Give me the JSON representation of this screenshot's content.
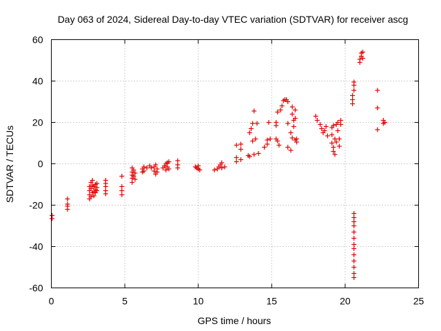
{
  "chart_data": {
    "type": "scatter",
    "title": "Day 063 of 2024, Sidereal Day-to-day VTEC variation (SDTVAR) for receiver ascg",
    "xlabel": "GPS time / hours",
    "ylabel": "SDTVAR / TECUs",
    "xlim": [
      0,
      25
    ],
    "ylim": [
      -60,
      60
    ],
    "xticks": [
      0,
      5,
      10,
      15,
      20,
      25
    ],
    "yticks": [
      -60,
      -40,
      -20,
      0,
      20,
      40,
      60
    ],
    "xtick_labels": [
      "0",
      "5",
      "10",
      "15",
      "20",
      "25"
    ],
    "ytick_labels": [
      "-60",
      "-40",
      "-20",
      "0",
      "20",
      "40",
      "60"
    ],
    "grid": true,
    "marker": "+",
    "series": [
      {
        "name": "SDTVAR",
        "color": "#e00000",
        "points": [
          [
            0.05,
            -25
          ],
          [
            0.05,
            -26.5
          ],
          [
            1.1,
            -17
          ],
          [
            1.1,
            -19.5
          ],
          [
            1.1,
            -20.5
          ],
          [
            1.1,
            -22
          ],
          [
            2.6,
            -11
          ],
          [
            2.6,
            -13
          ],
          [
            2.6,
            -15
          ],
          [
            2.6,
            -17
          ],
          [
            2.7,
            -9
          ],
          [
            2.7,
            -12
          ],
          [
            2.7,
            -16
          ],
          [
            2.8,
            -8
          ],
          [
            2.8,
            -10.5
          ],
          [
            2.8,
            -14
          ],
          [
            2.9,
            -11
          ],
          [
            2.9,
            -13.5
          ],
          [
            2.9,
            -15.5
          ],
          [
            3.0,
            -10
          ],
          [
            3.0,
            -12.5
          ],
          [
            3.0,
            -14
          ],
          [
            3.1,
            -9.5
          ],
          [
            3.1,
            -11.5
          ],
          [
            3.1,
            -13
          ],
          [
            3.7,
            -8
          ],
          [
            3.7,
            -9.5
          ],
          [
            3.7,
            -11
          ],
          [
            3.7,
            -13
          ],
          [
            3.7,
            -14.5
          ],
          [
            4.8,
            -6
          ],
          [
            4.8,
            -11
          ],
          [
            4.8,
            -13
          ],
          [
            4.8,
            -15
          ],
          [
            5.5,
            -2
          ],
          [
            5.5,
            -4
          ],
          [
            5.5,
            -5.5
          ],
          [
            5.5,
            -7
          ],
          [
            5.5,
            -9
          ],
          [
            5.6,
            -3
          ],
          [
            5.6,
            -6
          ],
          [
            5.7,
            -4.5
          ],
          [
            5.7,
            -7.5
          ],
          [
            6.2,
            -2.5
          ],
          [
            6.2,
            -4
          ],
          [
            6.3,
            -1.5
          ],
          [
            6.3,
            -3.5
          ],
          [
            6.5,
            -2
          ],
          [
            6.7,
            -1
          ],
          [
            6.8,
            -2
          ],
          [
            7.0,
            -1.5
          ],
          [
            7.0,
            -3.5
          ],
          [
            7.1,
            -0.5
          ],
          [
            7.1,
            -5
          ],
          [
            7.2,
            -2.5
          ],
          [
            7.2,
            -4
          ],
          [
            7.6,
            -2
          ],
          [
            7.7,
            -1
          ],
          [
            7.8,
            0
          ],
          [
            7.8,
            -3
          ],
          [
            7.9,
            -1.5
          ],
          [
            7.9,
            0.5
          ],
          [
            8.0,
            1
          ],
          [
            8.0,
            -2.5
          ],
          [
            8.6,
            1.5
          ],
          [
            8.6,
            -0.5
          ],
          [
            8.6,
            -2
          ],
          [
            9.8,
            -1.5
          ],
          [
            9.9,
            -2
          ],
          [
            10.0,
            -1
          ],
          [
            10.0,
            -2.5
          ],
          [
            10.1,
            -3
          ],
          [
            11.1,
            -3
          ],
          [
            11.3,
            -2.5
          ],
          [
            11.4,
            -1.5
          ],
          [
            11.5,
            -0.5
          ],
          [
            11.6,
            0.5
          ],
          [
            11.6,
            -2
          ],
          [
            11.8,
            -1.5
          ],
          [
            12.6,
            9
          ],
          [
            12.6,
            3
          ],
          [
            12.6,
            1
          ],
          [
            12.9,
            9.5
          ],
          [
            12.9,
            7
          ],
          [
            12.9,
            2
          ],
          [
            13.4,
            4
          ],
          [
            13.5,
            3.5
          ],
          [
            13.5,
            15
          ],
          [
            13.6,
            17
          ],
          [
            13.7,
            19.5
          ],
          [
            13.7,
            11
          ],
          [
            13.8,
            25.5
          ],
          [
            13.8,
            4.5
          ],
          [
            13.9,
            12
          ],
          [
            14.0,
            19.5
          ],
          [
            14.1,
            5
          ],
          [
            14.5,
            8
          ],
          [
            14.7,
            9.5
          ],
          [
            14.7,
            11.5
          ],
          [
            14.8,
            20
          ],
          [
            14.9,
            12
          ],
          [
            15.3,
            12
          ],
          [
            15.3,
            18.5
          ],
          [
            15.3,
            20
          ],
          [
            15.4,
            25
          ],
          [
            15.4,
            11
          ],
          [
            15.5,
            9
          ],
          [
            15.6,
            26
          ],
          [
            15.7,
            28
          ],
          [
            15.8,
            30.5
          ],
          [
            15.9,
            31
          ],
          [
            16.0,
            31
          ],
          [
            16.1,
            30
          ],
          [
            16.1,
            19.5
          ],
          [
            16.1,
            8
          ],
          [
            16.3,
            15
          ],
          [
            16.3,
            6.5
          ],
          [
            16.4,
            27.5
          ],
          [
            16.4,
            24
          ],
          [
            16.5,
            21
          ],
          [
            16.5,
            18
          ],
          [
            16.6,
            26
          ],
          [
            16.6,
            22
          ],
          [
            16.6,
            11.5
          ],
          [
            16.7,
            12
          ],
          [
            16.7,
            10.5
          ],
          [
            16.4,
            12.5
          ],
          [
            18.0,
            23
          ],
          [
            18.1,
            21
          ],
          [
            18.3,
            19
          ],
          [
            18.4,
            17
          ],
          [
            18.5,
            15
          ],
          [
            18.6,
            16
          ],
          [
            18.7,
            18
          ],
          [
            18.8,
            13.5
          ],
          [
            19.1,
            17.5
          ],
          [
            19.1,
            14
          ],
          [
            19.1,
            10
          ],
          [
            19.2,
            18.5
          ],
          [
            19.2,
            8
          ],
          [
            19.2,
            6
          ],
          [
            19.3,
            12
          ],
          [
            19.3,
            4.5
          ],
          [
            19.4,
            19
          ],
          [
            19.4,
            10.5
          ],
          [
            19.5,
            20
          ],
          [
            19.5,
            16
          ],
          [
            19.6,
            12
          ],
          [
            19.6,
            8.5
          ],
          [
            19.7,
            21
          ],
          [
            19.7,
            19
          ],
          [
            20.5,
            31
          ],
          [
            20.5,
            29
          ],
          [
            20.5,
            33
          ],
          [
            20.6,
            35.5
          ],
          [
            20.6,
            38
          ],
          [
            20.6,
            39.5
          ],
          [
            20.6,
            -24
          ],
          [
            20.6,
            -26
          ],
          [
            20.6,
            -28
          ],
          [
            20.6,
            -30
          ],
          [
            20.6,
            -33
          ],
          [
            20.6,
            -36
          ],
          [
            20.6,
            -39
          ],
          [
            20.6,
            -41
          ],
          [
            20.6,
            -44
          ],
          [
            20.6,
            -47
          ],
          [
            20.6,
            -50
          ],
          [
            20.6,
            -53
          ],
          [
            20.6,
            -55
          ],
          [
            21.0,
            49
          ],
          [
            21.0,
            50.5
          ],
          [
            21.1,
            52
          ],
          [
            21.1,
            53.5
          ],
          [
            21.2,
            51
          ],
          [
            21.2,
            54
          ],
          [
            22.2,
            35.5
          ],
          [
            22.2,
            27
          ],
          [
            22.2,
            16.5
          ],
          [
            22.6,
            21
          ],
          [
            22.6,
            19.5
          ],
          [
            22.7,
            20
          ]
        ]
      }
    ]
  }
}
